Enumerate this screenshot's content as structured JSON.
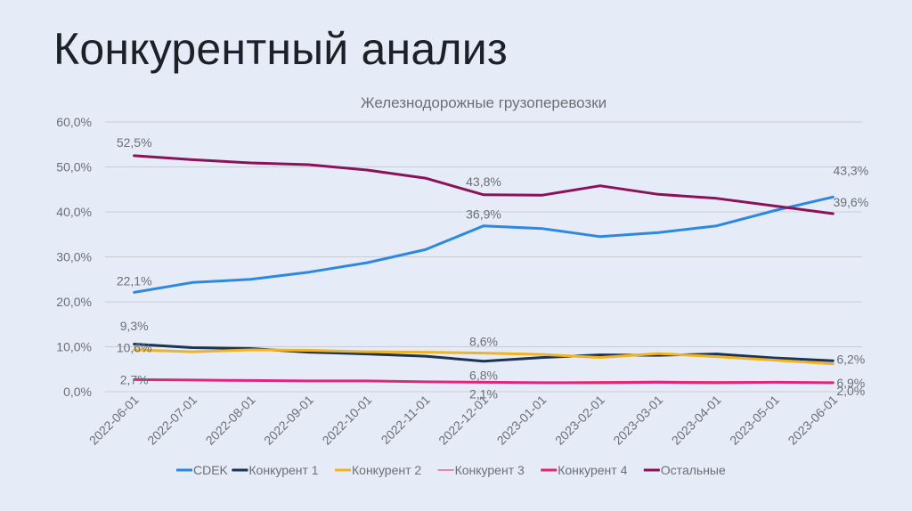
{
  "slide": {
    "title": "Конкурентный анализ"
  },
  "chart_data": {
    "type": "line",
    "title": "Железнодорожные грузоперевозки",
    "xlabel": "",
    "ylabel": "",
    "ylim": [
      0,
      60
    ],
    "y_ticks": [
      "0,0%",
      "10,0%",
      "20,0%",
      "30,0%",
      "40,0%",
      "50,0%",
      "60,0%"
    ],
    "y_tick_values": [
      0,
      10,
      20,
      30,
      40,
      50,
      60
    ],
    "grid": "horizontal",
    "legend_position": "bottom",
    "categories": [
      "2022-06-01",
      "2022-07-01",
      "2022-08-01",
      "2022-09-01",
      "2022-10-01",
      "2022-11-01",
      "2022-12-01",
      "2023-01-01",
      "2023-02-01",
      "2023-03-01",
      "2023-04-01",
      "2023-05-01",
      "2023-06-01"
    ],
    "series": [
      {
        "name": "CDEK",
        "color": "#2e88e0",
        "values": [
          22.1,
          24.3,
          25.0,
          26.6,
          28.7,
          31.6,
          36.9,
          36.3,
          34.5,
          35.4,
          36.9,
          40.3,
          43.3
        ],
        "labels": [
          {
            "i": 0,
            "text": "22,1%"
          },
          {
            "i": 6,
            "text": "36,9%"
          },
          {
            "i": 12,
            "text": "43,3%"
          }
        ]
      },
      {
        "name": "Конкурент 1",
        "color": "#1b3357",
        "values": [
          10.6,
          9.8,
          9.6,
          8.8,
          8.4,
          7.9,
          6.8,
          7.6,
          8.2,
          8.1,
          8.4,
          7.5,
          6.9
        ],
        "labels": [
          {
            "i": 0,
            "text": "10,6%"
          },
          {
            "i": 6,
            "text": "6,8%"
          },
          {
            "i": 12,
            "text": "6,9%"
          }
        ]
      },
      {
        "name": "Конкурент 2",
        "color": "#f0b323",
        "values": [
          9.3,
          8.9,
          9.3,
          9.2,
          8.9,
          8.8,
          8.6,
          8.3,
          7.6,
          8.5,
          7.8,
          7.0,
          6.2
        ],
        "labels": [
          {
            "i": 0,
            "text": "9,3%"
          },
          {
            "i": 6,
            "text": "8,6%"
          },
          {
            "i": 12,
            "text": "6,2%"
          }
        ]
      },
      {
        "name": "Конкурент 3",
        "color": "#e66b86",
        "values": [
          2.7,
          2.6,
          2.5,
          2.5,
          2.4,
          2.3,
          2.1,
          2.1,
          2.2,
          2.3,
          2.2,
          2.2,
          2.0
        ],
        "labels": []
      },
      {
        "name": "Конкурент 4",
        "color": "#e3257a",
        "values": [
          2.7,
          2.6,
          2.5,
          2.4,
          2.4,
          2.2,
          2.1,
          2.0,
          2.0,
          2.1,
          2.0,
          2.1,
          2.0
        ],
        "labels": [
          {
            "i": 0,
            "text": "2,7%"
          },
          {
            "i": 6,
            "text": "2,1%"
          },
          {
            "i": 12,
            "text": "2,0%"
          }
        ]
      },
      {
        "name": "Остальные",
        "color": "#8b1259",
        "values": [
          52.5,
          51.6,
          50.9,
          50.5,
          49.3,
          47.5,
          43.8,
          43.7,
          45.8,
          43.9,
          43.0,
          41.3,
          39.6
        ],
        "labels": [
          {
            "i": 0,
            "text": "52,5%"
          },
          {
            "i": 6,
            "text": "43,8%"
          },
          {
            "i": 12,
            "text": "39,6%"
          }
        ]
      }
    ]
  }
}
